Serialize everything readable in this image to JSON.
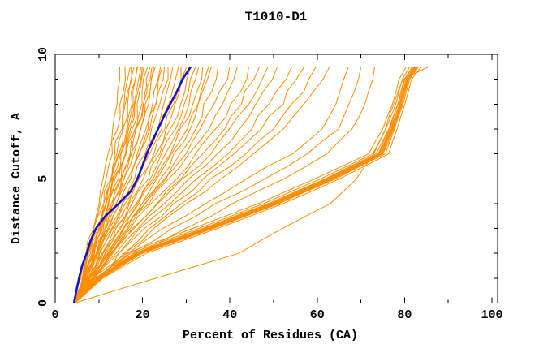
{
  "page": {
    "title": "T1010-D1"
  },
  "chart_data": {
    "type": "line",
    "title": "T1010-D1",
    "xlabel": "Percent of Residues (CA)",
    "ylabel": "Distance Cutoff, A",
    "xlim": [
      0,
      101.3
    ],
    "ylim": [
      0,
      10
    ],
    "grid": false,
    "legend": "none",
    "background": "#ffffff",
    "x_major_ticks": [
      0,
      20,
      40,
      60,
      80,
      100
    ],
    "x_minor_ticks": [
      10,
      30,
      50,
      70,
      90
    ],
    "y_major_ticks": [
      0,
      5,
      10
    ],
    "y_minor_ticks": [
      1,
      2,
      3,
      4,
      6,
      7,
      8,
      9
    ],
    "colors": {
      "model": "#ff8c00",
      "reference": "#1212c8",
      "frame": "#000000"
    },
    "default_cutoffs": [
      0,
      1,
      2,
      3,
      4,
      5,
      6,
      7,
      8,
      9,
      9.5
    ],
    "reference_series": {
      "name": "reference-model",
      "group": "reference",
      "c": [
        0,
        0.5,
        1,
        1.5,
        2,
        2.5,
        3,
        3.5,
        4,
        4.5,
        5,
        5.5,
        6,
        6.5,
        7,
        7.5,
        8,
        8.5,
        9,
        9.5
      ],
      "p": [
        4.3,
        4.9,
        5.5,
        6.2,
        7.2,
        8.1,
        9.3,
        11.5,
        14.5,
        17.3,
        18.8,
        19.9,
        21.0,
        22.3,
        23.5,
        24.9,
        26.3,
        27.8,
        29.2,
        31.0
      ]
    },
    "model_series": [
      {
        "group": "steep",
        "p": [
          4.5,
          5.9,
          7.1,
          8.4,
          9.8,
          11.0,
          12.2,
          13.2,
          14.1,
          14.7,
          15.0
        ]
      },
      {
        "group": "steep",
        "p": [
          4.5,
          6.0,
          7.4,
          8.8,
          10.3,
          11.6,
          12.9,
          14.0,
          15.0,
          15.7,
          16.0
        ]
      },
      {
        "group": "steep",
        "p": [
          4.5,
          6.1,
          7.6,
          9.1,
          10.8,
          12.3,
          13.6,
          14.9,
          15.9,
          16.7,
          17.0
        ]
      },
      {
        "group": "steep",
        "p": [
          4.5,
          6.2,
          7.8,
          9.4,
          11.0,
          12.6,
          14.0,
          15.3,
          16.3,
          17.2,
          17.5
        ]
      },
      {
        "group": "steep",
        "p": [
          4.5,
          6.3,
          7.9,
          9.5,
          11.3,
          12.9,
          14.4,
          15.7,
          16.8,
          17.7,
          18.0
        ]
      },
      {
        "group": "steep",
        "p": [
          4.5,
          6.3,
          8.0,
          9.7,
          11.5,
          13.2,
          14.7,
          16.1,
          17.2,
          18.2,
          18.5
        ]
      },
      {
        "group": "steep",
        "p": [
          4.5,
          6.4,
          8.1,
          9.9,
          11.8,
          13.5,
          15.1,
          16.5,
          17.7,
          18.6,
          19.0
        ]
      },
      {
        "group": "steep",
        "p": [
          4.5,
          6.5,
          8.3,
          10.1,
          12.0,
          13.8,
          15.5,
          16.9,
          18.2,
          19.1,
          19.5
        ]
      },
      {
        "group": "steep",
        "p": [
          4.5,
          6.5,
          8.4,
          10.2,
          12.3,
          14.1,
          15.8,
          17.4,
          18.6,
          19.6,
          20.0
        ]
      },
      {
        "group": "steep",
        "p": [
          4.5,
          6.6,
          8.5,
          10.4,
          12.5,
          14.4,
          16.2,
          17.8,
          19.1,
          20.1,
          20.5
        ]
      },
      {
        "group": "steep",
        "p": [
          4.5,
          6.6,
          8.6,
          10.6,
          12.8,
          14.7,
          16.5,
          18.2,
          19.5,
          20.6,
          21.0
        ]
      },
      {
        "group": "steep",
        "p": [
          4.5,
          6.7,
          8.8,
          10.8,
          13.0,
          15.0,
          16.9,
          18.6,
          20.0,
          21.1,
          21.5
        ]
      },
      {
        "group": "steep",
        "p": [
          4.5,
          6.8,
          8.9,
          11.0,
          13.3,
          15.4,
          17.3,
          19.0,
          20.4,
          21.6,
          22.0
        ]
      },
      {
        "group": "steep",
        "p": [
          4.5,
          6.8,
          9.0,
          11.2,
          13.5,
          15.7,
          17.6,
          19.4,
          20.9,
          22.1,
          22.5
        ]
      },
      {
        "group": "steep",
        "p": [
          4.5,
          6.9,
          9.1,
          11.3,
          13.8,
          16.0,
          18.0,
          19.9,
          21.3,
          22.5,
          23.0
        ]
      },
      {
        "group": "steep",
        "p": [
          4.5,
          7.0,
          9.4,
          11.7,
          14.3,
          16.6,
          18.7,
          20.7,
          22.2,
          23.5,
          24.0
        ]
      },
      {
        "group": "steep",
        "p": [
          4.5,
          7.1,
          9.5,
          11.9,
          14.5,
          16.9,
          19.1,
          21.1,
          22.7,
          24.0,
          24.5
        ]
      },
      {
        "group": "steep",
        "p": [
          4.5,
          7.2,
          9.6,
          12.1,
          14.8,
          17.2,
          19.5,
          21.5,
          23.2,
          24.5,
          25.0
        ]
      },
      {
        "group": "steep",
        "p": [
          4.5,
          7.3,
          9.9,
          12.5,
          15.3,
          17.8,
          20.2,
          22.3,
          24.1,
          25.5,
          26.0
        ]
      },
      {
        "group": "steep",
        "p": [
          4.5,
          7.4,
          10.1,
          12.8,
          15.8,
          18.5,
          20.9,
          23.2,
          25.0,
          26.4,
          27.0
        ]
      },
      {
        "group": "steep",
        "p": [
          4.5,
          7.6,
          10.4,
          13.2,
          16.3,
          19.1,
          21.7,
          24.0,
          25.9,
          27.4,
          28.0
        ]
      },
      {
        "group": "steep",
        "p": [
          4.5,
          7.7,
          10.6,
          13.6,
          16.8,
          19.7,
          22.4,
          24.8,
          26.8,
          28.4,
          29.0
        ]
      },
      {
        "group": "steep",
        "p": [
          4.5,
          7.8,
          10.9,
          13.9,
          17.3,
          20.3,
          23.1,
          25.7,
          27.7,
          29.4,
          30.0
        ]
      },
      {
        "group": "steep",
        "p": [
          4.5,
          7.9,
          11.1,
          14.3,
          17.8,
          20.9,
          23.8,
          26.5,
          28.6,
          30.3,
          31.0
        ]
      },
      {
        "group": "steep",
        "p": [
          4.5,
          8.1,
          11.4,
          14.7,
          18.3,
          21.6,
          24.6,
          27.3,
          29.5,
          31.3,
          32.0
        ]
      },
      {
        "group": "steep",
        "p": [
          4.5,
          8.2,
          11.6,
          15.0,
          18.8,
          22.2,
          25.3,
          28.2,
          30.4,
          32.3,
          33.0
        ]
      },
      {
        "group": "steep",
        "p": [
          4.5,
          8.3,
          11.9,
          15.4,
          19.3,
          22.8,
          26.0,
          29.0,
          31.3,
          33.3,
          34.0
        ]
      },
      {
        "group": "steep",
        "p": [
          4.5,
          8.5,
          12.1,
          15.8,
          19.8,
          23.4,
          26.8,
          29.8,
          32.3,
          34.2,
          35.0
        ]
      },
      {
        "group": "steep",
        "p": [
          4.5,
          8.6,
          12.4,
          16.2,
          20.3,
          24.0,
          27.5,
          30.6,
          33.2,
          35.2,
          36.0
        ]
      },
      {
        "group": "steep",
        "p": [
          4.5,
          8.8,
          12.8,
          16.7,
          21.0,
          25.0,
          28.6,
          31.9,
          34.5,
          36.7,
          37.5
        ]
      },
      {
        "group": "mid",
        "p": [
          4.5,
          8.1,
          11.6,
          15.5,
          20.1,
          24.7,
          29.4,
          33.3,
          36.5,
          38.9,
          40.0
        ]
      },
      {
        "group": "mid",
        "p": [
          4.5,
          8.3,
          12.0,
          16.1,
          21.0,
          25.9,
          30.8,
          34.9,
          38.3,
          40.9,
          42.0
        ]
      },
      {
        "group": "mid",
        "p": [
          4.5,
          8.5,
          12.5,
          16.9,
          22.1,
          27.3,
          32.5,
          36.9,
          40.5,
          43.3,
          44.5
        ]
      },
      {
        "group": "mid",
        "p": [
          4.5,
          8.7,
          12.9,
          17.5,
          23.0,
          28.4,
          33.9,
          38.5,
          42.3,
          45.2,
          46.5
        ]
      },
      {
        "group": "mid",
        "p": [
          4.5,
          8.9,
          13.3,
          18.1,
          23.9,
          29.6,
          35.3,
          40.1,
          44.1,
          47.2,
          48.5
        ]
      },
      {
        "group": "mid",
        "p": [
          4.5,
          9.2,
          13.8,
          18.9,
          25.0,
          31.0,
          37.1,
          42.2,
          46.4,
          49.6,
          51.0
        ]
      },
      {
        "group": "mid",
        "p": [
          4.5,
          9.5,
          14.4,
          19.8,
          26.3,
          32.7,
          39.2,
          44.6,
          49.1,
          52.5,
          54.0
        ]
      },
      {
        "group": "mid",
        "p": [
          4.5,
          9.8,
          15.0,
          20.8,
          27.6,
          34.4,
          41.3,
          47.0,
          51.8,
          55.4,
          57.0
        ]
      },
      {
        "group": "mid",
        "p": [
          4.5,
          10.1,
          15.6,
          21.7,
          28.9,
          36.1,
          43.4,
          49.5,
          54.5,
          58.3,
          60.0
        ]
      },
      {
        "group": "mid",
        "p": [
          4.5,
          10.4,
          16.2,
          22.6,
          30.2,
          37.8,
          45.5,
          51.9,
          57.2,
          61.2,
          63.0
        ]
      },
      {
        "group": "spread",
        "p": [
          4.5,
          10.0,
          16.5,
          25.0,
          34.0,
          44.0,
          54.0,
          61.0,
          64.5,
          66.2,
          67.0
        ]
      },
      {
        "group": "spread",
        "p": [
          4.5,
          10.3,
          17.5,
          27.0,
          37.0,
          48.0,
          58.0,
          64.5,
          67.5,
          69.3,
          70.0
        ]
      },
      {
        "group": "spread",
        "p": [
          4.5,
          10.6,
          18.5,
          30.0,
          41.0,
          52.0,
          62.0,
          68.0,
          71.0,
          72.4,
          73.0
        ]
      },
      {
        "group": "bundle",
        "p": [
          4.5,
          8.6,
          16.2,
          31.5,
          46.5,
          59.5,
          71.7,
          74.9,
          77.3,
          78.8,
          80.4
        ]
      },
      {
        "group": "bundle",
        "p": [
          4.5,
          9.1,
          17.2,
          32.8,
          47.8,
          60.8,
          72.7,
          75.7,
          77.9,
          79.4,
          81.2
        ]
      },
      {
        "group": "bundle",
        "p": [
          4.5,
          9.5,
          18.0,
          33.8,
          48.8,
          61.8,
          73.5,
          76.3,
          78.4,
          79.9,
          81.8
        ]
      },
      {
        "group": "bundle",
        "p": [
          4.5,
          9.7,
          18.4,
          34.2,
          49.2,
          62.2,
          73.9,
          76.5,
          78.6,
          80.1,
          82.0
        ]
      },
      {
        "group": "bundle",
        "p": [
          4.5,
          9.8,
          18.6,
          34.5,
          49.5,
          62.5,
          74.1,
          76.7,
          78.8,
          80.3,
          82.2
        ]
      },
      {
        "group": "bundle",
        "p": [
          4.5,
          9.9,
          18.8,
          34.8,
          49.8,
          62.8,
          74.3,
          76.9,
          78.9,
          80.4,
          82.4
        ]
      },
      {
        "group": "bundle",
        "p": [
          4.5,
          10.0,
          19.0,
          35.0,
          50.0,
          63.0,
          74.5,
          77.0,
          79.0,
          80.5,
          82.5
        ]
      },
      {
        "group": "bundle",
        "p": [
          4.5,
          10.1,
          19.2,
          35.3,
          50.3,
          63.3,
          74.7,
          77.2,
          79.1,
          80.6,
          82.7
        ]
      },
      {
        "group": "bundle",
        "p": [
          4.5,
          10.2,
          19.4,
          35.5,
          50.5,
          63.5,
          74.9,
          77.3,
          79.3,
          80.8,
          82.8
        ]
      },
      {
        "group": "bundle",
        "p": [
          4.5,
          10.3,
          19.6,
          35.8,
          50.8,
          63.8,
          75.1,
          77.5,
          79.4,
          80.9,
          83.0
        ]
      },
      {
        "group": "bundle",
        "p": [
          4.5,
          10.5,
          20.0,
          36.2,
          51.2,
          64.2,
          75.5,
          77.7,
          79.6,
          81.1,
          83.2
        ]
      },
      {
        "group": "bundle",
        "p": [
          4.5,
          10.9,
          20.8,
          37.2,
          52.2,
          65.2,
          76.3,
          78.3,
          80.1,
          81.6,
          83.8
        ]
      },
      {
        "group": "low",
        "p": [
          4.5,
          23.0,
          42.0,
          52.0,
          63.0,
          69.0,
          73.0,
          75.5,
          77.5,
          79.5,
          85.5
        ]
      }
    ]
  }
}
